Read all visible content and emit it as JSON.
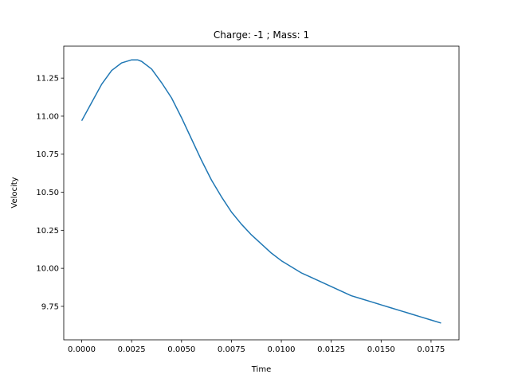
{
  "chart_data": {
    "type": "line",
    "title": "Charge: -1 ; Mass: 1",
    "xlabel": "Time",
    "ylabel": "Velocity",
    "xlim": [
      -0.0009,
      0.0189
    ],
    "ylim": [
      9.53,
      11.46
    ],
    "xticks": [
      0.0,
      0.0025,
      0.005,
      0.0075,
      0.01,
      0.0125,
      0.015,
      0.0175
    ],
    "xtick_labels": [
      "0.0000",
      "0.0025",
      "0.0050",
      "0.0075",
      "0.0100",
      "0.0125",
      "0.0150",
      "0.0175"
    ],
    "yticks": [
      9.75,
      10.0,
      10.25,
      10.5,
      10.75,
      11.0,
      11.25
    ],
    "ytick_labels": [
      "9.75",
      "10.00",
      "10.25",
      "10.50",
      "10.75",
      "11.00",
      "11.25"
    ],
    "grid": false,
    "series": [
      {
        "color": "#1f77b4",
        "x": [
          0.0,
          0.0005,
          0.001,
          0.0015,
          0.002,
          0.0025,
          0.0028,
          0.003,
          0.0035,
          0.004,
          0.0045,
          0.005,
          0.0055,
          0.006,
          0.0065,
          0.007,
          0.0075,
          0.008,
          0.0085,
          0.009,
          0.0095,
          0.01,
          0.0105,
          0.011,
          0.0115,
          0.012,
          0.0125,
          0.013,
          0.0135,
          0.014,
          0.0145,
          0.015,
          0.0155,
          0.016,
          0.0165,
          0.017,
          0.0175,
          0.018
        ],
        "y": [
          10.97,
          11.09,
          11.21,
          11.3,
          11.35,
          11.37,
          11.37,
          11.36,
          11.31,
          11.22,
          11.12,
          10.99,
          10.85,
          10.71,
          10.58,
          10.47,
          10.37,
          10.29,
          10.22,
          10.16,
          10.1,
          10.05,
          10.01,
          9.97,
          9.94,
          9.91,
          9.88,
          9.85,
          9.82,
          9.8,
          9.78,
          9.76,
          9.74,
          9.72,
          9.7,
          9.68,
          9.66,
          9.64
        ]
      }
    ]
  }
}
